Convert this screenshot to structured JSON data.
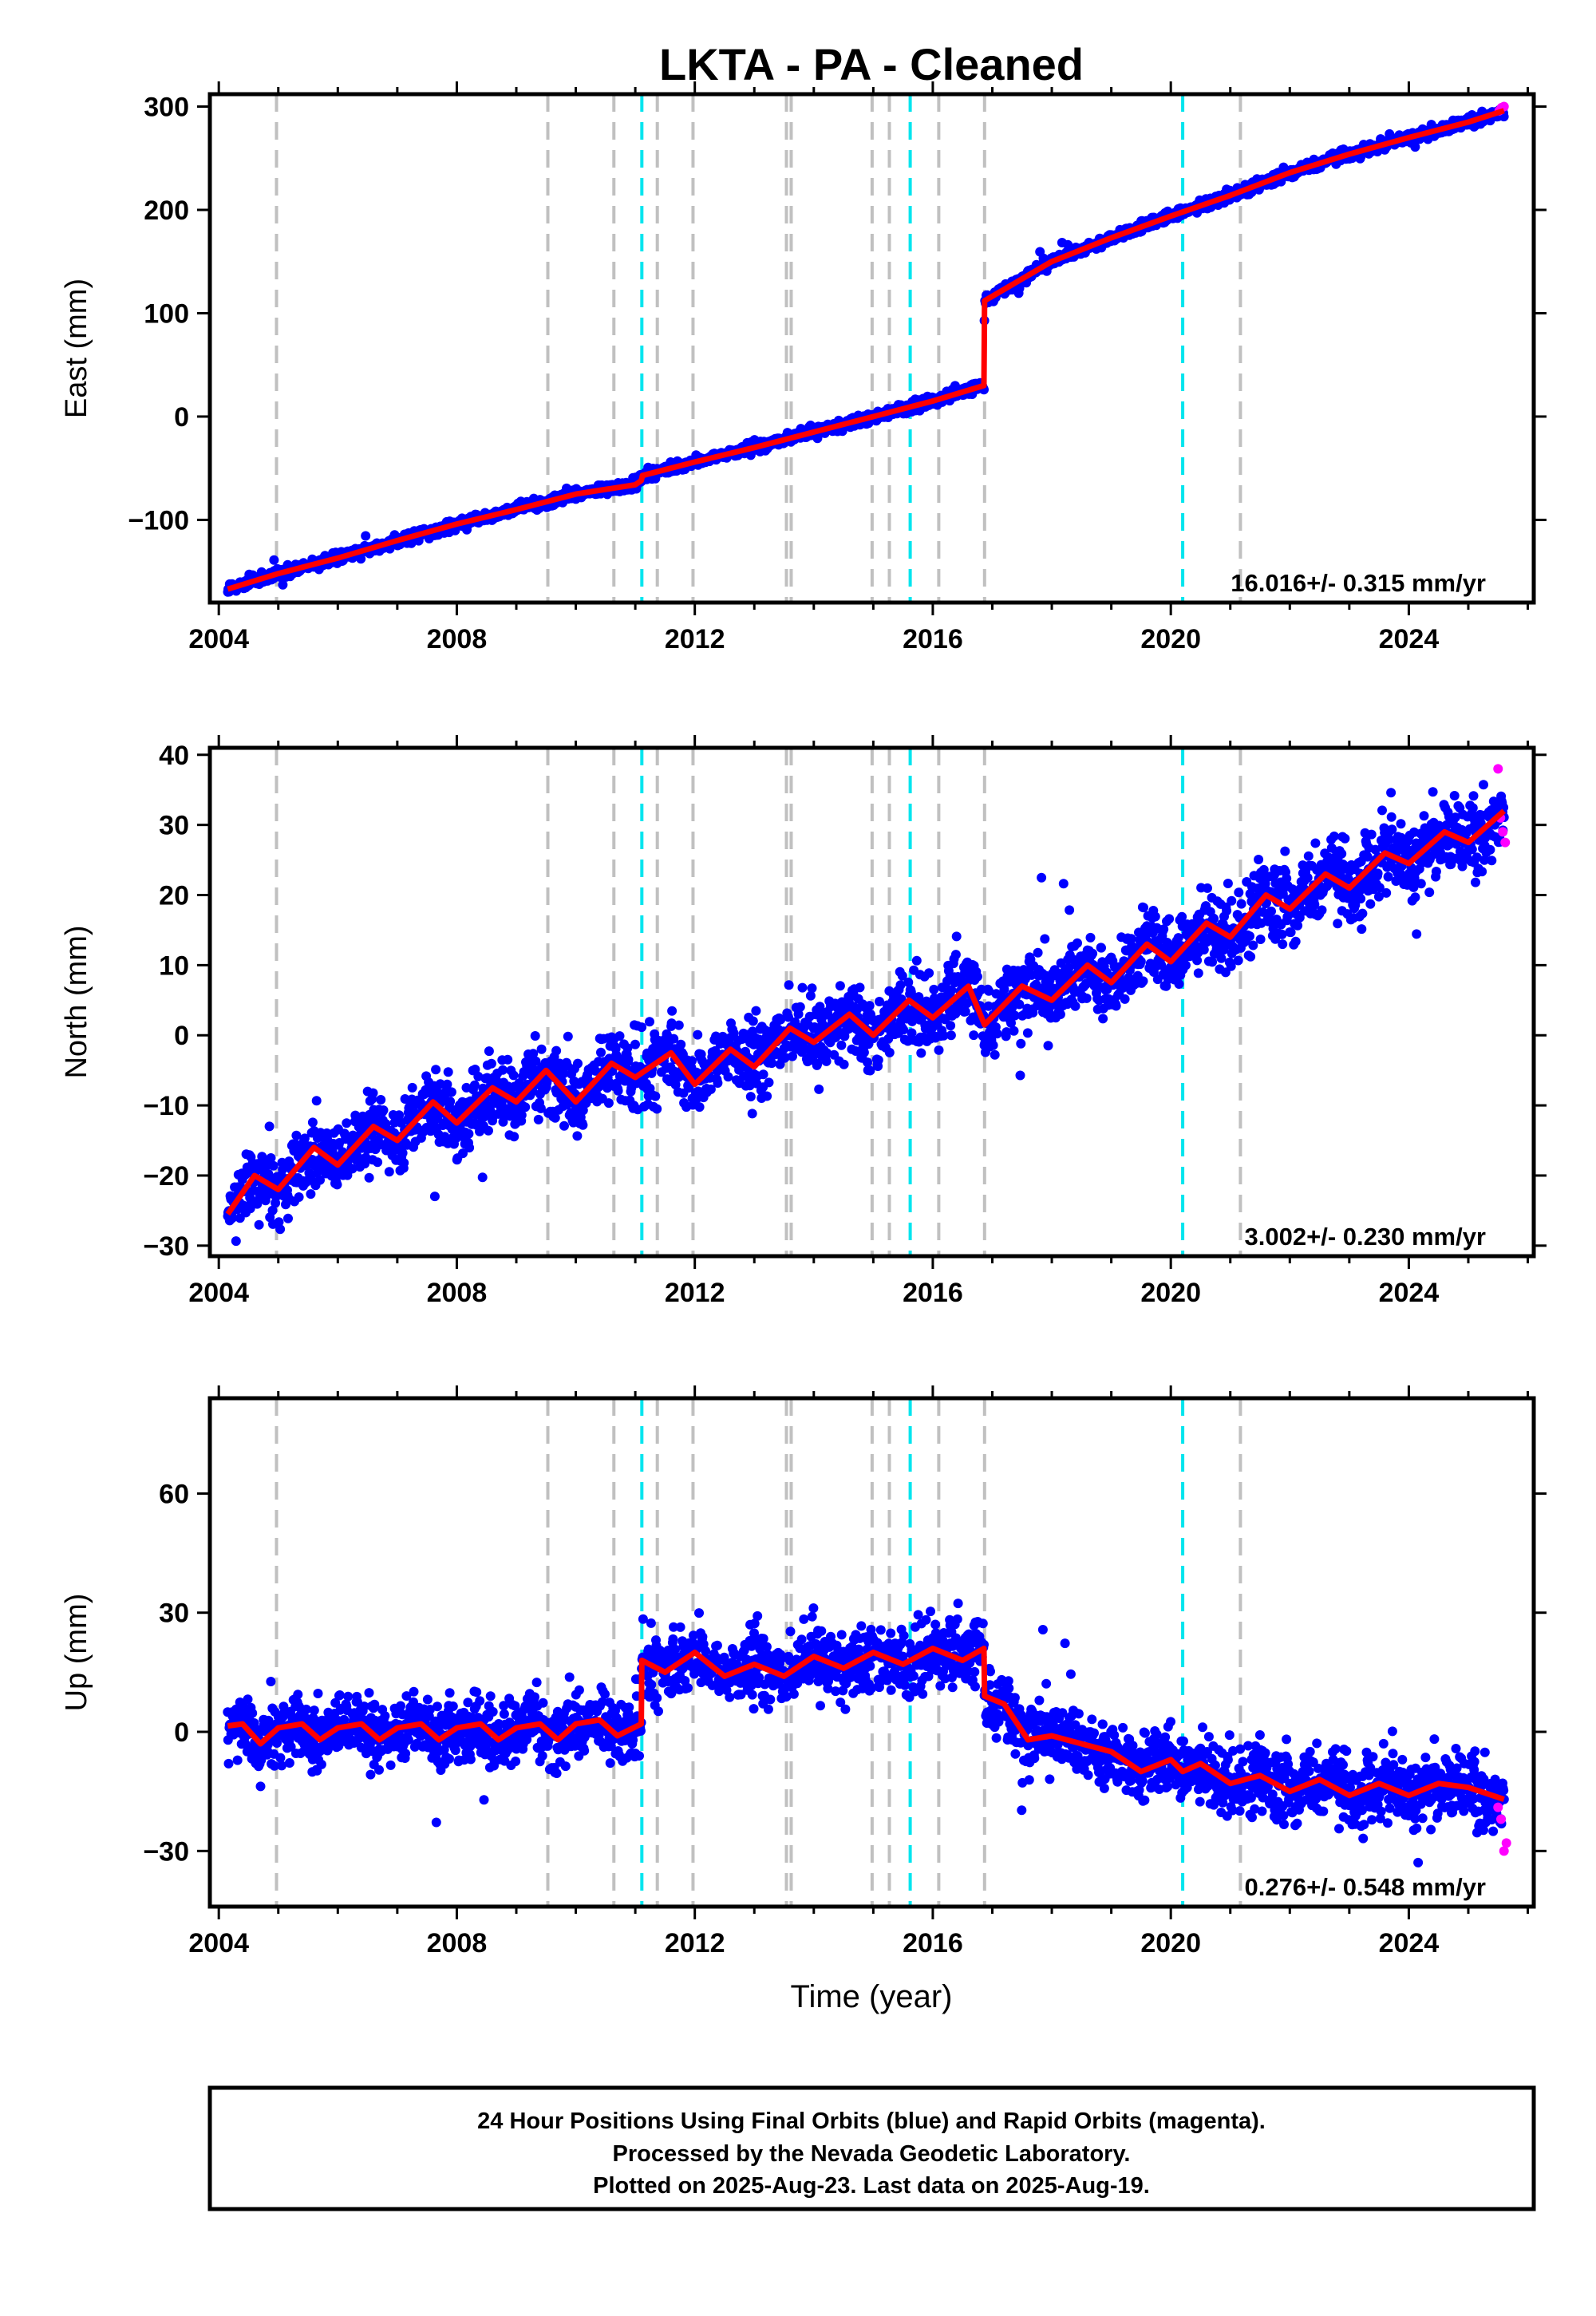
{
  "title": "LKTA  - PA - Cleaned",
  "footer": {
    "lines": [
      "24 Hour Positions Using Final Orbits (blue) and Rapid Orbits (magenta).",
      "Processed by the Nevada Geodetic Laboratory.",
      "Plotted on 2025-Aug-23. Last data on 2025-Aug-19."
    ]
  },
  "colors": {
    "final_orbits": "#0000ff",
    "rapid_orbits": "#ff00ff",
    "model": "#ff0000",
    "steps_gray": "#c0c0c0",
    "steps_cyan": "#00e5ee"
  },
  "chart_data": [
    {
      "type": "scatter",
      "ylabel": "East (mm)",
      "xlabel": "",
      "xlim": [
        2003.85,
        2026.1
      ],
      "ylim": [
        -180,
        312
      ],
      "xticks": [
        2004,
        2008,
        2012,
        2016,
        2020,
        2024
      ],
      "yticks": [
        -100,
        0,
        100,
        200,
        300
      ],
      "ytick_labels": [
        "−100",
        "0",
        "100",
        "200",
        "300"
      ],
      "rate_label": "16.016+/- 0.315 mm/yr",
      "steps_gray": [
        2004.97,
        2009.53,
        2010.64,
        2011.37,
        2011.97,
        2013.54,
        2013.62,
        2014.98,
        2015.27,
        2016.1,
        2016.87,
        2021.17
      ],
      "steps_cyan": [
        2011.11,
        2015.62,
        2020.2
      ],
      "model": {
        "x": [
          2004.15,
          2005.0,
          2006.0,
          2007.0,
          2008.0,
          2009.0,
          2010.0,
          2011.0,
          2011.1,
          2011.12,
          2012.0,
          2013.0,
          2014.0,
          2015.0,
          2016.0,
          2016.86,
          2016.87,
          2018.0,
          2019.0,
          2020.0,
          2021.0,
          2022.0,
          2023.0,
          2024.0,
          2025.0,
          2025.6
        ],
        "y": [
          -167,
          -152,
          -137,
          -120,
          -104,
          -90,
          -75,
          -66,
          -62,
          -57,
          -44,
          -30,
          -15,
          0,
          15,
          30,
          112,
          150,
          173,
          194,
          214,
          236,
          254,
          270,
          285,
          296
        ]
      },
      "noise_mm": 2.5,
      "rapid": {
        "x": [
          2025.52,
          2025.56,
          2025.6
        ],
        "y": [
          296,
          299,
          300
        ]
      }
    },
    {
      "type": "scatter",
      "ylabel": "North (mm)",
      "xlabel": "",
      "xlim": [
        2003.85,
        2026.1
      ],
      "ylim": [
        -31.5,
        41
      ],
      "xticks": [
        2004,
        2008,
        2012,
        2016,
        2020,
        2024
      ],
      "yticks": [
        -30,
        -20,
        -10,
        0,
        10,
        20,
        30,
        40
      ],
      "ytick_labels": [
        "−30",
        "−20",
        "−10",
        "0",
        "10",
        "20",
        "30",
        "40"
      ],
      "rate_label": "3.002+/- 0.230 mm/yr",
      "steps_gray": [
        2004.97,
        2009.53,
        2010.64,
        2011.37,
        2011.97,
        2013.54,
        2013.62,
        2014.98,
        2015.27,
        2016.1,
        2016.87,
        2021.17
      ],
      "steps_cyan": [
        2011.11,
        2015.62,
        2020.2
      ],
      "model": {
        "x": [
          2004.15,
          2004.6,
          2005.0,
          2005.6,
          2006.0,
          2006.6,
          2007.0,
          2007.6,
          2008.0,
          2008.6,
          2009.0,
          2009.5,
          2010.0,
          2010.6,
          2011.0,
          2011.6,
          2012.0,
          2012.6,
          2013.0,
          2013.6,
          2014.0,
          2014.6,
          2015.0,
          2015.6,
          2016.0,
          2016.6,
          2016.87,
          2017.5,
          2018.0,
          2018.6,
          2019.0,
          2019.6,
          2020.0,
          2020.6,
          2021.0,
          2021.6,
          2022.0,
          2022.6,
          2023.0,
          2023.6,
          2024.0,
          2024.6,
          2025.0,
          2025.6
        ],
        "y": [
          -25.5,
          -20,
          -22,
          -16,
          -18.5,
          -13,
          -15,
          -9.5,
          -12.5,
          -7.5,
          -9.5,
          -5,
          -9.5,
          -4,
          -6,
          -2.5,
          -7,
          -2,
          -4.5,
          1,
          -1,
          3,
          0,
          5,
          2.5,
          7,
          1.5,
          7,
          5,
          10,
          7.5,
          13,
          10.5,
          16,
          14,
          20,
          18,
          23,
          21,
          26,
          24.5,
          29,
          27.5,
          32
        ]
      },
      "noise_mm": 2.6,
      "rapid": {
        "x": [
          2025.5,
          2025.54,
          2025.58,
          2025.62
        ],
        "y": [
          38,
          31,
          29,
          27.5
        ]
      }
    },
    {
      "type": "scatter",
      "ylabel": "Up (mm)",
      "xlabel": "Time (year)",
      "xlim": [
        2003.85,
        2026.1
      ],
      "ylim": [
        -44,
        84
      ],
      "xticks": [
        2004,
        2008,
        2012,
        2016,
        2020,
        2024
      ],
      "yticks": [
        -30,
        0,
        30,
        60
      ],
      "ytick_labels": [
        "−30",
        "0",
        "30",
        "60"
      ],
      "rate_label": "0.276+/- 0.548 mm/yr",
      "steps_gray": [
        2004.97,
        2009.53,
        2010.64,
        2011.37,
        2011.97,
        2013.54,
        2013.62,
        2014.98,
        2015.27,
        2016.1,
        2016.87,
        2021.17
      ],
      "steps_cyan": [
        2011.11,
        2015.62,
        2020.2
      ],
      "model": {
        "x": [
          2004.15,
          2004.4,
          2004.7,
          2005.0,
          2005.4,
          2005.7,
          2006.0,
          2006.4,
          2006.7,
          2007.0,
          2007.4,
          2007.7,
          2008.0,
          2008.4,
          2008.7,
          2009.0,
          2009.4,
          2009.7,
          2010.0,
          2010.4,
          2010.7,
          2011.1,
          2011.11,
          2011.5,
          2012.0,
          2012.5,
          2013.0,
          2013.5,
          2014.0,
          2014.5,
          2015.0,
          2015.5,
          2016.0,
          2016.5,
          2016.86,
          2016.87,
          2017.2,
          2017.6,
          2018.0,
          2018.5,
          2019.0,
          2019.5,
          2020.0,
          2020.2,
          2020.5,
          2021.0,
          2021.5,
          2022.0,
          2022.5,
          2023.0,
          2023.5,
          2024.0,
          2024.5,
          2025.0,
          2025.6
        ],
        "y": [
          1.5,
          2,
          -3,
          1,
          2,
          -2,
          1,
          2,
          -2,
          1,
          2,
          -2,
          1,
          2,
          -2,
          1,
          2,
          -2,
          2,
          3,
          -1,
          2,
          18,
          15,
          20,
          14,
          17,
          14,
          19,
          16,
          20,
          17,
          21,
          18,
          21,
          9,
          7,
          -2,
          -1,
          -3,
          -5,
          -10,
          -7,
          -10,
          -8,
          -13,
          -11,
          -15,
          -12,
          -16,
          -13,
          -16,
          -13,
          -14,
          -17
        ]
      },
      "noise_mm": 4.2,
      "rapid": {
        "x": [
          2025.5,
          2025.55,
          2025.6,
          2025.64
        ],
        "y": [
          -19,
          -22,
          -30,
          -28
        ]
      }
    }
  ]
}
